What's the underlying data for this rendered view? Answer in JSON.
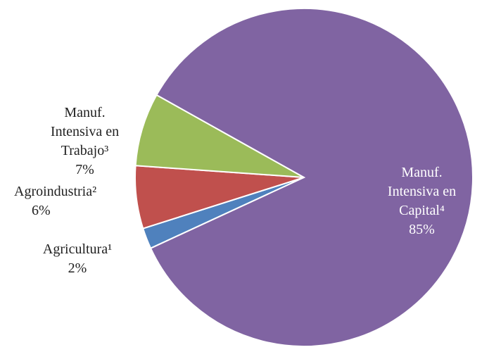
{
  "chart_data": {
    "type": "pie",
    "categories": [
      "Agricultura¹",
      "Agroindustria²",
      "Manuf. Intensiva en Trabajo³",
      "Manuf. Intensiva en Capital⁴"
    ],
    "values": [
      2,
      6,
      7,
      85
    ],
    "value_labels": [
      "2%",
      "6%",
      "7%",
      "85%"
    ],
    "colors": [
      "#4f81bd",
      "#c0504d",
      "#9bbb59",
      "#8064a2"
    ]
  }
}
